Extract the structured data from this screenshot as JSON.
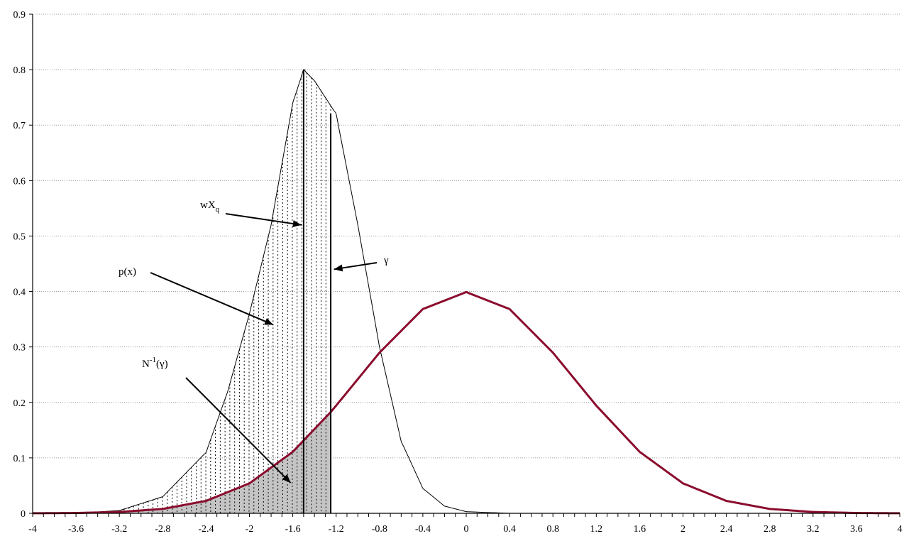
{
  "chart_data": {
    "type": "line",
    "title": "",
    "xlabel": "",
    "ylabel": "",
    "xlim": [
      -4,
      4
    ],
    "ylim": [
      0,
      0.9
    ],
    "grid": true,
    "x_ticks": [
      "-4",
      "-3.6",
      "-3.2",
      "-2.8",
      "-2.4",
      "-2",
      "-1.6",
      "-1.2",
      "-0.8",
      "-0.4",
      "0",
      "0.4",
      "0.8",
      "1.2",
      "1.6",
      "2",
      "2.4",
      "2.8",
      "3.2",
      "3.6",
      "4"
    ],
    "y_ticks": [
      "0",
      "0.1",
      "0.2",
      "0.3",
      "0.4",
      "0.5",
      "0.6",
      "0.7",
      "0.8",
      "0.9"
    ],
    "series": [
      {
        "color": "#000000",
        "x": [
          -4,
          -3.6,
          -3.2,
          -2.8,
          -2.4,
          -2.2,
          -2,
          -1.8,
          -1.6,
          -1.5,
          -1.4,
          -1.2,
          -1,
          -0.8,
          -0.6,
          -0.4,
          -0.2,
          0,
          0.4,
          0.8
        ],
        "values": [
          0.0,
          0.0,
          0.005,
          0.03,
          0.11,
          0.22,
          0.36,
          0.52,
          0.74,
          0.8,
          0.78,
          0.72,
          0.52,
          0.3,
          0.13,
          0.045,
          0.013,
          0.003,
          0.0,
          0.0
        ]
      },
      {
        "color": "#8b0d2e",
        "x": [
          -4,
          -3.6,
          -3.2,
          -2.8,
          -2.4,
          -2,
          -1.6,
          -1.25,
          -1.2,
          -0.8,
          -0.4,
          0,
          0.4,
          0.8,
          1.2,
          1.6,
          2,
          2.4,
          2.8,
          3.2,
          3.6,
          4
        ],
        "values": [
          0.0001,
          0.0006,
          0.0024,
          0.0079,
          0.0224,
          0.054,
          0.1109,
          0.1826,
          0.1942,
          0.2897,
          0.3683,
          0.3989,
          0.3683,
          0.2897,
          0.1942,
          0.1109,
          0.054,
          0.0224,
          0.0079,
          0.0024,
          0.0006,
          0.0001
        ]
      }
    ],
    "vertical_lines": [
      {
        "x": -1.5,
        "y": 0.8
      },
      {
        "x": -1.25,
        "y": 0.72
      }
    ],
    "dotted_fill_range": [
      -3.2,
      -1.25
    ],
    "gray_fill_range": [
      -4,
      -1.25
    ],
    "annotations": [
      {
        "label": "p(x)",
        "arrow_to": [
          -1.78,
          0.34
        ]
      },
      {
        "label": "wX",
        "subscript": "q",
        "arrow_to": [
          -1.52,
          0.52
        ]
      },
      {
        "label": "γ",
        "arrow_to": [
          -1.22,
          0.44
        ]
      },
      {
        "label": "N",
        "superscript": "-1",
        "suffix": "(γ)",
        "arrow_to": [
          -1.62,
          0.055
        ]
      }
    ]
  }
}
